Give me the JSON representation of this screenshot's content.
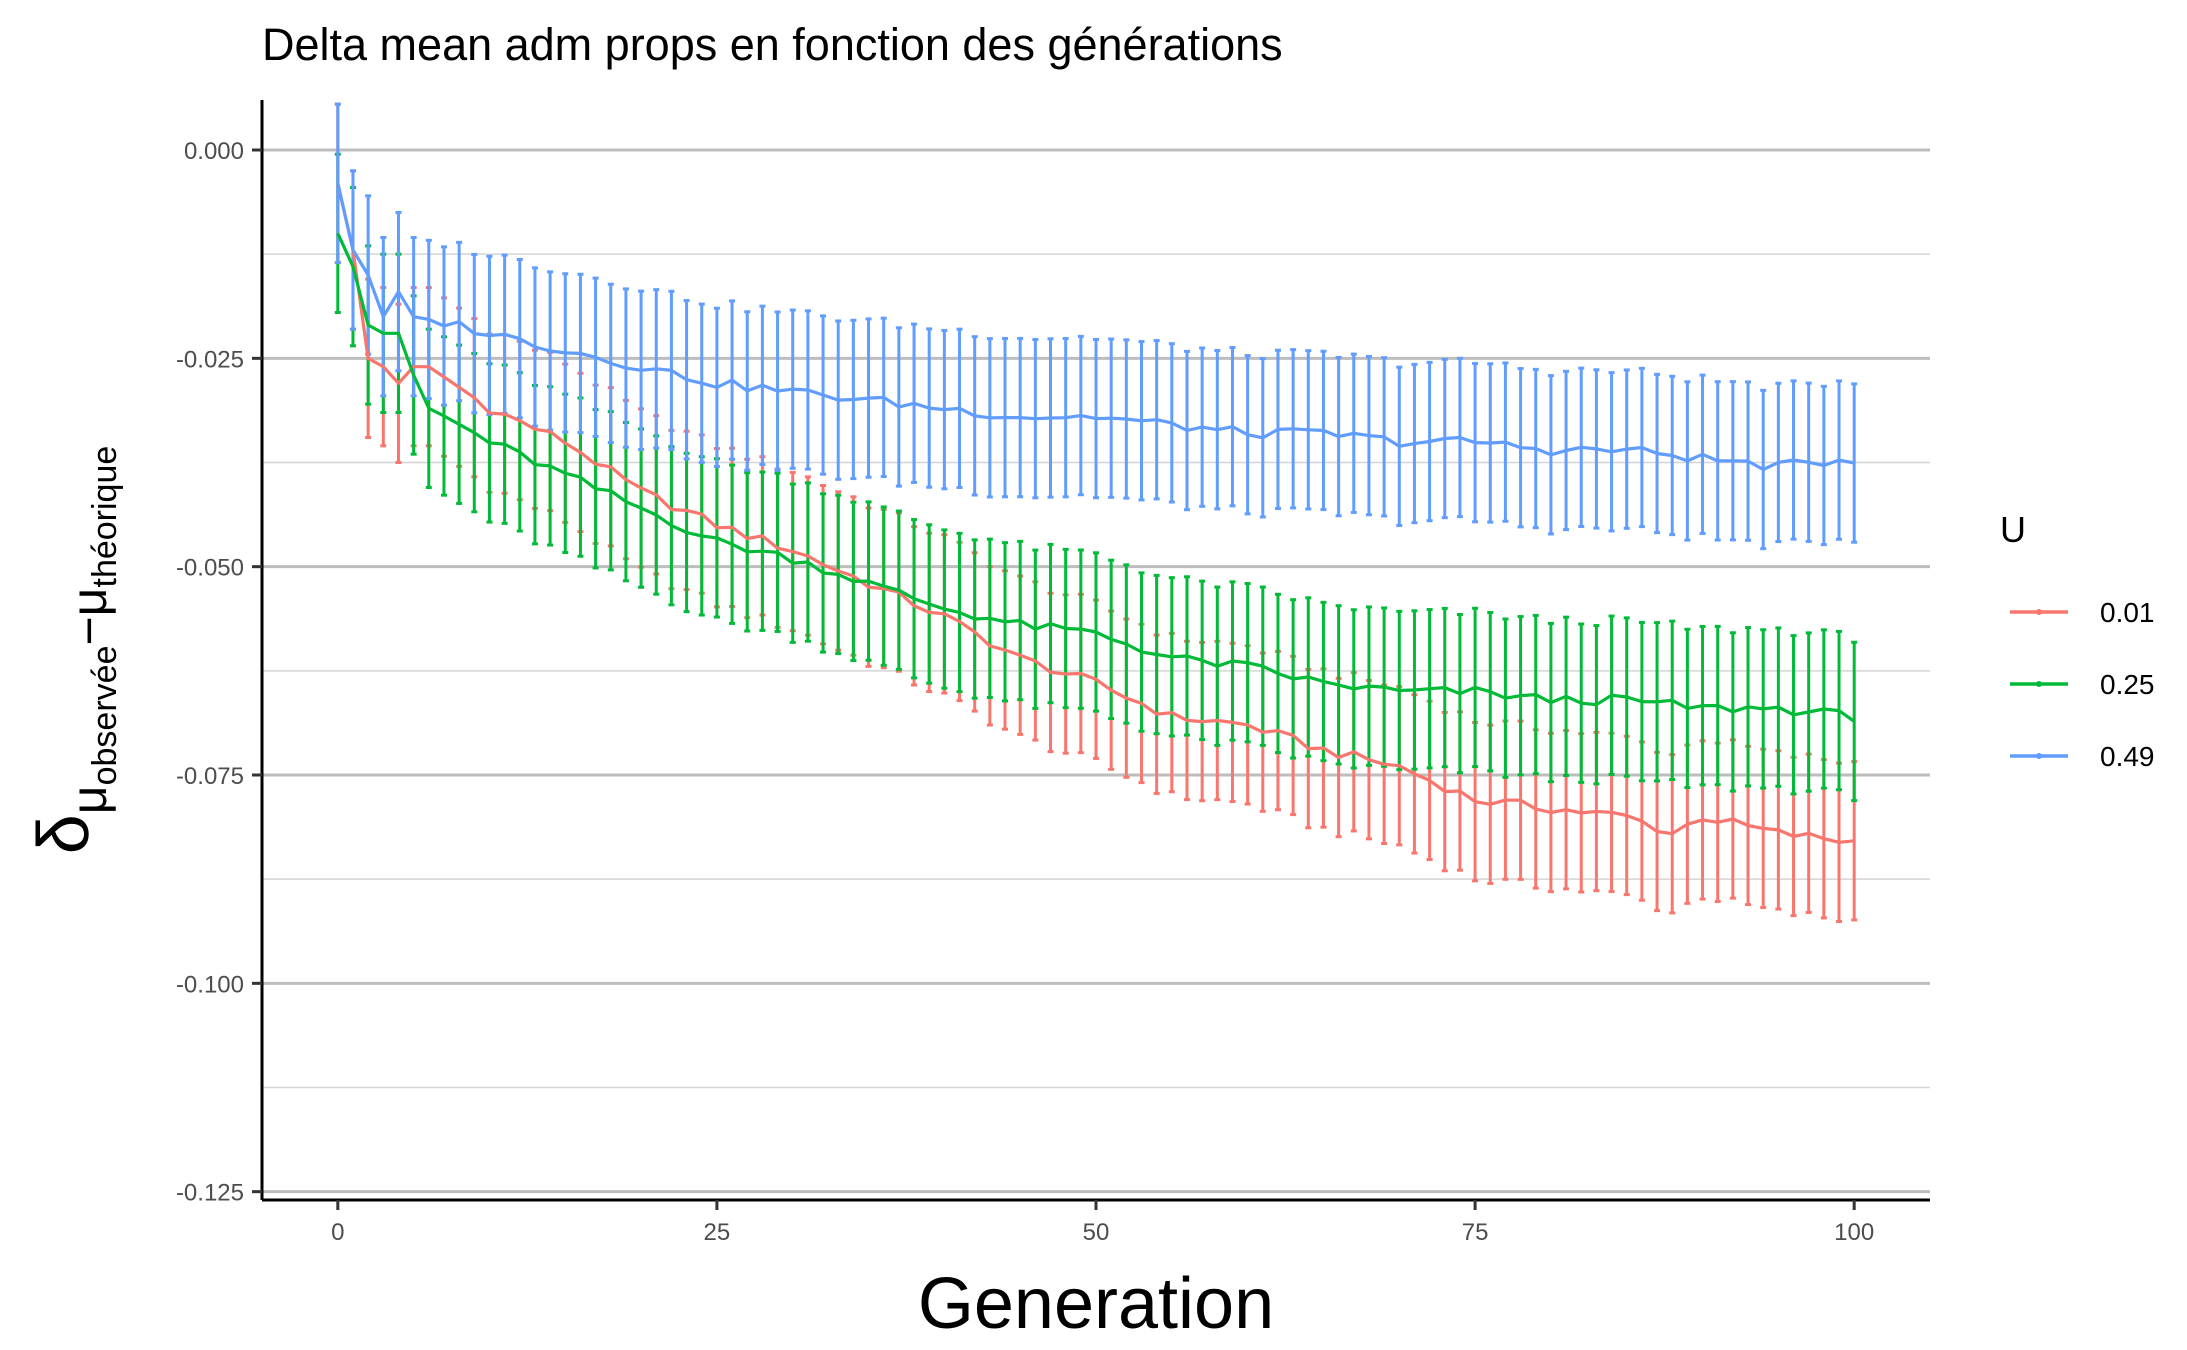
{
  "chart_data": {
    "type": "line",
    "title": "Delta mean adm props en fonction des générations",
    "xlabel": "Generation",
    "ylabel": {
      "symbol": "δ",
      "sub1": "μ",
      "sub1_sub": "observée",
      "operator": "−",
      "sub2": "μ",
      "sub2_sub": "théorique"
    },
    "xlim": [
      -5,
      105
    ],
    "ylim": [
      -0.126,
      0.006
    ],
    "x_ticks": [
      0,
      25,
      50,
      75,
      100
    ],
    "x_tick_labels": [
      "0",
      "25",
      "50",
      "75",
      "100"
    ],
    "y_ticks": [
      0.0,
      -0.025,
      -0.05,
      -0.075,
      -0.1,
      -0.125
    ],
    "y_tick_labels": [
      "0.000",
      "-0.025",
      "-0.050",
      "-0.075",
      "-0.100",
      "-0.125"
    ],
    "grid": {
      "major_y": true,
      "minor_y": true,
      "x": false
    },
    "legend": {
      "title": "U",
      "position": "right",
      "entries": [
        "0.01",
        "0.25",
        "0.49"
      ]
    },
    "x_range": [
      0,
      100
    ],
    "series": [
      {
        "name": "0.01",
        "color": "#F8766D",
        "errorbar_halfwidth": 0.0095,
        "anchors": [
          [
            0,
            -0.004
          ],
          [
            1,
            -0.012
          ],
          [
            2,
            -0.025
          ],
          [
            3,
            -0.026
          ],
          [
            4,
            -0.028
          ],
          [
            5,
            -0.026
          ],
          [
            6,
            -0.026
          ],
          [
            10,
            -0.031
          ],
          [
            15,
            -0.035
          ],
          [
            20,
            -0.041
          ],
          [
            25,
            -0.045
          ],
          [
            30,
            -0.048
          ],
          [
            35,
            -0.052
          ],
          [
            40,
            -0.056
          ],
          [
            45,
            -0.061
          ],
          [
            50,
            -0.064
          ],
          [
            55,
            -0.068
          ],
          [
            60,
            -0.069
          ],
          [
            65,
            -0.072
          ],
          [
            70,
            -0.074
          ],
          [
            75,
            -0.078
          ],
          [
            80,
            -0.079
          ],
          [
            85,
            -0.08
          ],
          [
            88,
            -0.082
          ],
          [
            90,
            -0.08
          ],
          [
            95,
            -0.082
          ],
          [
            100,
            -0.083
          ]
        ]
      },
      {
        "name": "0.25",
        "color": "#00BA38",
        "errorbar_halfwidth": 0.0095,
        "anchors": [
          [
            0,
            -0.01
          ],
          [
            1,
            -0.014
          ],
          [
            2,
            -0.021
          ],
          [
            3,
            -0.022
          ],
          [
            4,
            -0.022
          ],
          [
            5,
            -0.027
          ],
          [
            6,
            -0.031
          ],
          [
            10,
            -0.035
          ],
          [
            15,
            -0.039
          ],
          [
            20,
            -0.043
          ],
          [
            25,
            -0.047
          ],
          [
            30,
            -0.049
          ],
          [
            35,
            -0.052
          ],
          [
            40,
            -0.055
          ],
          [
            45,
            -0.057
          ],
          [
            50,
            -0.058
          ],
          [
            55,
            -0.061
          ],
          [
            60,
            -0.062
          ],
          [
            65,
            -0.064
          ],
          [
            70,
            -0.065
          ],
          [
            75,
            -0.065
          ],
          [
            80,
            -0.066
          ],
          [
            85,
            -0.066
          ],
          [
            90,
            -0.067
          ],
          [
            95,
            -0.067
          ],
          [
            100,
            -0.068
          ]
        ]
      },
      {
        "name": "0.49",
        "color": "#619CFF",
        "errorbar_halfwidth": 0.0095,
        "anchors": [
          [
            0,
            -0.004
          ],
          [
            1,
            -0.012
          ],
          [
            2,
            -0.015
          ],
          [
            3,
            -0.02
          ],
          [
            4,
            -0.017
          ],
          [
            5,
            -0.02
          ],
          [
            8,
            -0.021
          ],
          [
            10,
            -0.022
          ],
          [
            15,
            -0.024
          ],
          [
            20,
            -0.026
          ],
          [
            25,
            -0.028
          ],
          [
            30,
            -0.029
          ],
          [
            35,
            -0.03
          ],
          [
            40,
            -0.031
          ],
          [
            45,
            -0.032
          ],
          [
            50,
            -0.032
          ],
          [
            55,
            -0.033
          ],
          [
            60,
            -0.034
          ],
          [
            65,
            -0.034
          ],
          [
            70,
            -0.035
          ],
          [
            75,
            -0.035
          ],
          [
            80,
            -0.036
          ],
          [
            85,
            -0.036
          ],
          [
            90,
            -0.037
          ],
          [
            95,
            -0.038
          ],
          [
            100,
            -0.037
          ]
        ]
      }
    ]
  }
}
